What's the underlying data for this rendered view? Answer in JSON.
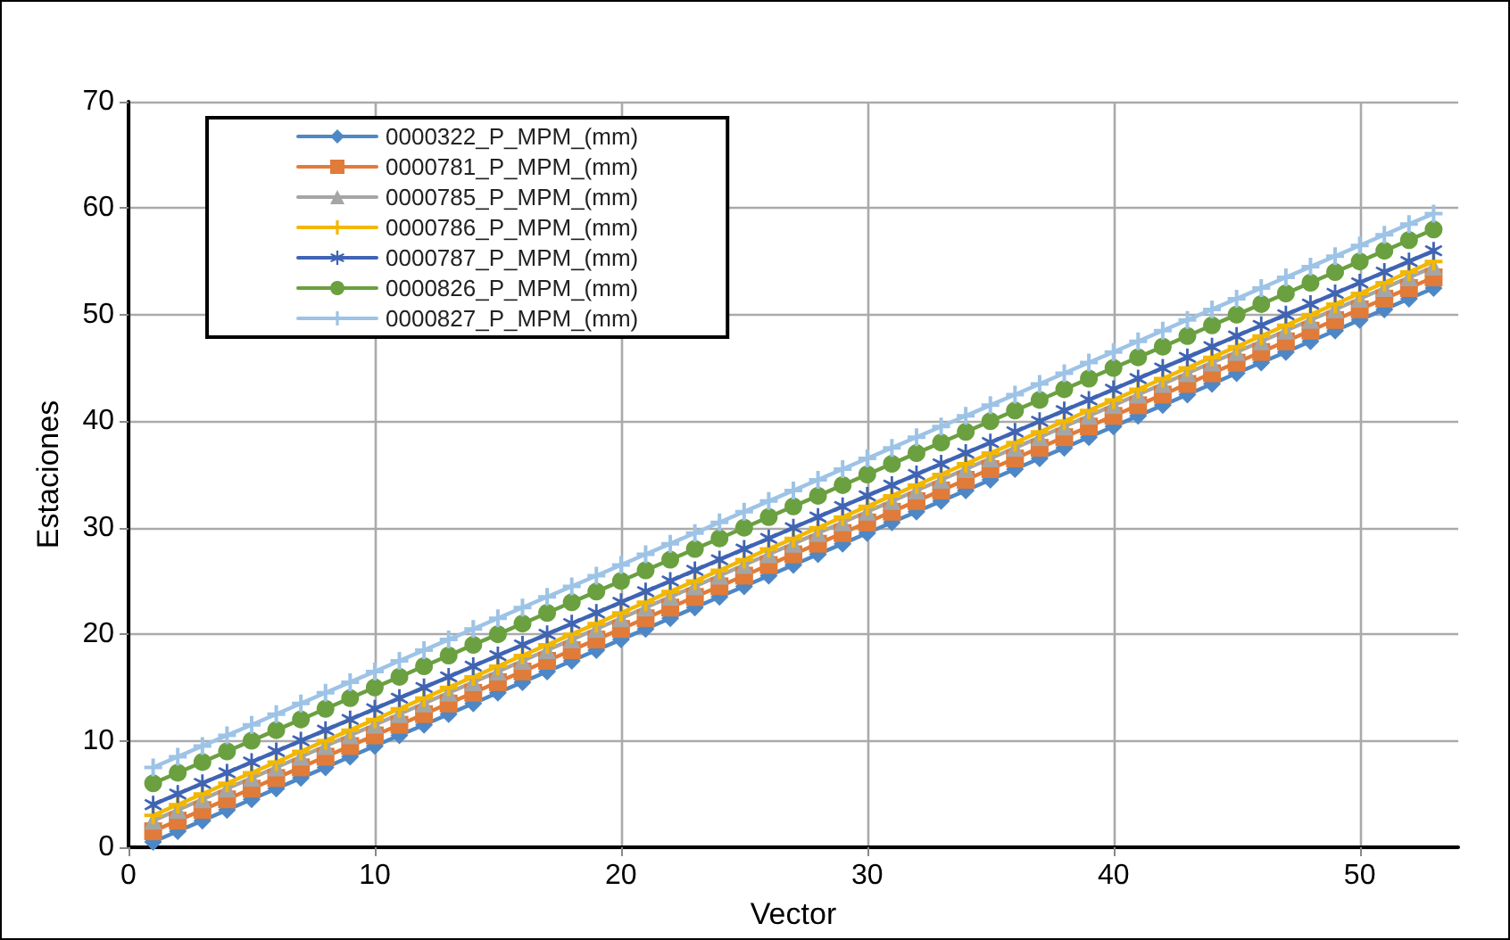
{
  "chart_data": {
    "type": "line",
    "xlabel": "Vector",
    "ylabel": "Estaciones",
    "x": [
      1,
      2,
      3,
      4,
      5,
      6,
      7,
      8,
      9,
      10,
      11,
      12,
      13,
      14,
      15,
      16,
      17,
      18,
      19,
      20,
      21,
      22,
      23,
      24,
      25,
      26,
      27,
      28,
      29,
      30,
      31,
      32,
      33,
      34,
      35,
      36,
      37,
      38,
      39,
      40,
      41,
      42,
      43,
      44,
      45,
      46,
      47,
      48,
      49,
      50,
      51,
      52,
      53
    ],
    "xlim": [
      0,
      54
    ],
    "xticks": [
      0,
      10,
      20,
      30,
      40,
      50
    ],
    "ylim": [
      0,
      70
    ],
    "yticks": [
      0,
      10,
      20,
      30,
      40,
      50,
      60,
      70
    ],
    "grid": true,
    "legend": "top left",
    "series": [
      {
        "name": "0000322_P_MPM_(mm)",
        "color": "#4e87c5",
        "marker": "diamond",
        "values": [
          0.5,
          1.5,
          2.5,
          3.5,
          4.5,
          5.5,
          6.5,
          7.5,
          8.5,
          9.5,
          10.5,
          11.5,
          12.5,
          13.5,
          14.5,
          15.5,
          16.5,
          17.5,
          18.5,
          19.5,
          20.5,
          21.5,
          22.5,
          23.5,
          24.5,
          25.5,
          26.5,
          27.5,
          28.5,
          29.5,
          30.5,
          31.5,
          32.5,
          33.5,
          34.5,
          35.5,
          36.5,
          37.5,
          38.5,
          39.5,
          40.5,
          41.5,
          42.5,
          43.5,
          44.5,
          45.5,
          46.5,
          47.5,
          48.5,
          49.5,
          50.5,
          51.5,
          52.5
        ]
      },
      {
        "name": "0000781_P_MPM_(mm)",
        "color": "#e07b39",
        "marker": "square",
        "values": [
          1.5,
          2.5,
          3.5,
          4.5,
          5.5,
          6.5,
          7.5,
          8.5,
          9.5,
          10.5,
          11.5,
          12.5,
          13.5,
          14.5,
          15.5,
          16.5,
          17.5,
          18.5,
          19.5,
          20.5,
          21.5,
          22.5,
          23.5,
          24.5,
          25.5,
          26.5,
          27.5,
          28.5,
          29.5,
          30.5,
          31.5,
          32.5,
          33.5,
          34.5,
          35.5,
          36.5,
          37.5,
          38.5,
          39.5,
          40.5,
          41.5,
          42.5,
          43.5,
          44.5,
          45.5,
          46.5,
          47.5,
          48.5,
          49.5,
          50.5,
          51.5,
          52.5,
          53.5
        ]
      },
      {
        "name": "0000785_P_MPM_(mm)",
        "color": "#a5a5a5",
        "marker": "triangle",
        "values": [
          2.5,
          3.5,
          4.5,
          5.5,
          6.5,
          7.5,
          8.5,
          9.5,
          10.5,
          11.5,
          12.5,
          13.5,
          14.5,
          15.5,
          16.5,
          17.5,
          18.5,
          19.5,
          20.5,
          21.5,
          22.5,
          23.5,
          24.5,
          25.5,
          26.5,
          27.5,
          28.5,
          29.5,
          30.5,
          31.5,
          32.5,
          33.5,
          34.5,
          35.5,
          36.5,
          37.5,
          38.5,
          39.5,
          40.5,
          41.5,
          42.5,
          43.5,
          44.5,
          45.5,
          46.5,
          47.5,
          48.5,
          49.5,
          50.5,
          51.5,
          52.5,
          53.5,
          54.5
        ]
      },
      {
        "name": "0000786_P_MPM_(mm)",
        "color": "#f2b800",
        "marker": "cross",
        "values": [
          3,
          4,
          5,
          6,
          7,
          8,
          9,
          10,
          11,
          12,
          13,
          14,
          15,
          16,
          17,
          18,
          19,
          20,
          21,
          22,
          23,
          24,
          25,
          26,
          27,
          28,
          29,
          30,
          31,
          32,
          33,
          34,
          35,
          36,
          37,
          38,
          39,
          40,
          41,
          42,
          43,
          44,
          45,
          46,
          47,
          48,
          49,
          50,
          51,
          52,
          53,
          54,
          55
        ]
      },
      {
        "name": "0000787_P_MPM_(mm)",
        "color": "#3f64b4",
        "marker": "star",
        "values": [
          4,
          5,
          6,
          7,
          8,
          9,
          10,
          11,
          12,
          13,
          14,
          15,
          16,
          17,
          18,
          19,
          20,
          21,
          22,
          23,
          24,
          25,
          26,
          27,
          28,
          29,
          30,
          31,
          32,
          33,
          34,
          35,
          36,
          37,
          38,
          39,
          40,
          41,
          42,
          43,
          44,
          45,
          46,
          47,
          48,
          49,
          50,
          51,
          52,
          53,
          54,
          55,
          56
        ]
      },
      {
        "name": "0000826_P_MPM_(mm)",
        "color": "#6aa040",
        "marker": "circle",
        "values": [
          6,
          7,
          8,
          9,
          10,
          11,
          12,
          13,
          14,
          15,
          16,
          17,
          18,
          19,
          20,
          21,
          22,
          23,
          24,
          25,
          26,
          27,
          28,
          29,
          30,
          31,
          32,
          33,
          34,
          35,
          36,
          37,
          38,
          39,
          40,
          41,
          42,
          43,
          44,
          45,
          46,
          47,
          48,
          49,
          50,
          51,
          52,
          53,
          54,
          55,
          56,
          57,
          58
        ]
      },
      {
        "name": "0000827_P_MPM_(mm)",
        "color": "#9dc3e6",
        "marker": "cross",
        "values": [
          7.5,
          8.5,
          9.5,
          10.5,
          11.5,
          12.5,
          13.5,
          14.5,
          15.5,
          16.5,
          17.5,
          18.5,
          19.5,
          20.5,
          21.5,
          22.5,
          23.5,
          24.5,
          25.5,
          26.5,
          27.5,
          28.5,
          29.5,
          30.5,
          31.5,
          32.5,
          33.5,
          34.5,
          35.5,
          36.5,
          37.5,
          38.5,
          39.5,
          40.5,
          41.5,
          42.5,
          43.5,
          44.5,
          45.5,
          46.5,
          47.5,
          48.5,
          49.5,
          50.5,
          51.5,
          52.5,
          53.5,
          54.5,
          55.5,
          56.5,
          57.5,
          58.5,
          59.5
        ]
      }
    ]
  }
}
